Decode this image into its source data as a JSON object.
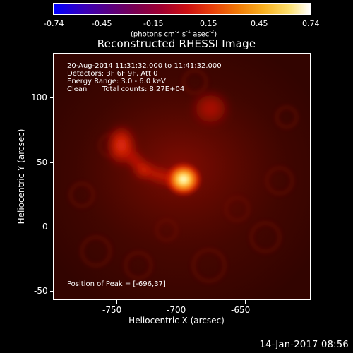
{
  "colorbar": {
    "ticks": [
      "-0.74",
      "-0.45",
      "-0.15",
      "0.15",
      "0.45",
      "0.74"
    ],
    "units": "(photons cm",
    "units_exp1": "-2",
    "units_mid": " s",
    "units_exp2": "-1",
    "units_mid2": " asec",
    "units_exp3": "-2",
    "units_end": ")"
  },
  "title": "Reconstructed RHESSI Image",
  "info": {
    "time_range": "20-Aug-2014 11:31:32.000 to 11:41:32.000",
    "detectors": "Detectors: 3F 6F 9F, Att 0",
    "energy": "Energy Range: 3.0 - 6.0 keV",
    "method": "Clean",
    "counts": "Total counts: 8.27E+04"
  },
  "peak": "Position of Peak = [-696,37]",
  "axes": {
    "ylabel": "Heliocentric Y (arcsec)",
    "xlabel": "Heliocentric X (arcsec)",
    "yticks": [
      "100",
      "50",
      "0",
      "-50"
    ],
    "xticks": [
      "-750",
      "-700",
      "-650"
    ]
  },
  "timestamp": "14-Jan-2017 08:56"
}
